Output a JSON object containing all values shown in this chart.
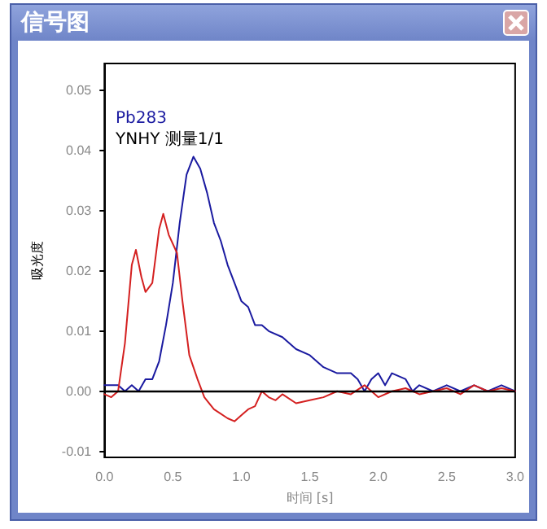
{
  "chart_data": {
    "type": "line",
    "title": "信号图",
    "xlabel": "时间 [s]",
    "ylabel": "吸光度",
    "annotations": [
      "YNHY 测量1/1"
    ],
    "xlim": [
      0,
      3
    ],
    "ylim": [
      -0.011,
      0.0545
    ],
    "xticks": [
      {
        "value": 0,
        "label": "0.0"
      },
      {
        "value": 0.5,
        "label": "0.5"
      },
      {
        "value": 1,
        "label": "1.0"
      },
      {
        "value": 1.5,
        "label": "1.5"
      },
      {
        "value": 2,
        "label": "2.0"
      },
      {
        "value": 2.5,
        "label": "2.5"
      },
      {
        "value": 3,
        "label": "3.0"
      }
    ],
    "yticks": [
      {
        "value": -0.01,
        "label": "-0.01"
      },
      {
        "value": 0,
        "label": "0.00"
      },
      {
        "value": 0.01,
        "label": "0.01"
      },
      {
        "value": 0.02,
        "label": "0.02"
      },
      {
        "value": 0.03,
        "label": "0.03"
      },
      {
        "value": 0.04,
        "label": "0.04"
      },
      {
        "value": 0.05,
        "label": "0.05"
      }
    ],
    "ref_lines": [
      {
        "axis": "y",
        "value": 0,
        "color": "#000000"
      }
    ],
    "grid": false,
    "legend": "top left",
    "marker": "none",
    "line_style": "solid",
    "series": [
      {
        "name": "Pb283",
        "color": "#1a1aa0",
        "x": [
          0,
          0.1,
          0.15,
          0.2,
          0.25,
          0.3,
          0.35,
          0.4,
          0.45,
          0.5,
          0.55,
          0.6,
          0.65,
          0.7,
          0.75,
          0.8,
          0.85,
          0.9,
          0.95,
          1.0,
          1.05,
          1.1,
          1.15,
          1.2,
          1.3,
          1.4,
          1.5,
          1.6,
          1.7,
          1.8,
          1.85,
          1.9,
          1.95,
          2.0,
          2.05,
          2.1,
          2.2,
          2.25,
          2.3,
          2.4,
          2.5,
          2.6,
          2.7,
          2.8,
          2.9,
          3.0
        ],
        "values": [
          0.001,
          0.001,
          0.0,
          0.001,
          0.0,
          0.002,
          0.002,
          0.005,
          0.011,
          0.018,
          0.028,
          0.036,
          0.039,
          0.037,
          0.033,
          0.028,
          0.025,
          0.021,
          0.018,
          0.015,
          0.014,
          0.011,
          0.011,
          0.01,
          0.009,
          0.007,
          0.006,
          0.004,
          0.003,
          0.003,
          0.002,
          0.0,
          0.002,
          0.003,
          0.001,
          0.003,
          0.002,
          0.0,
          0.001,
          0.0,
          0.001,
          0.0,
          0.001,
          0.0,
          0.001,
          0.0
        ]
      },
      {
        "color": "#d42020",
        "x": [
          0,
          0.05,
          0.1,
          0.15,
          0.2,
          0.23,
          0.27,
          0.3,
          0.35,
          0.4,
          0.43,
          0.47,
          0.53,
          0.57,
          0.62,
          0.68,
          0.73,
          0.8,
          0.9,
          0.95,
          1.0,
          1.05,
          1.1,
          1.15,
          1.2,
          1.25,
          1.3,
          1.4,
          1.5,
          1.6,
          1.7,
          1.8,
          1.9,
          2.0,
          2.1,
          2.2,
          2.3,
          2.4,
          2.5,
          2.6,
          2.7,
          2.8,
          2.9,
          3.0
        ],
        "values": [
          -0.0005,
          -0.001,
          0.0,
          0.008,
          0.021,
          0.0235,
          0.019,
          0.0165,
          0.018,
          0.027,
          0.0295,
          0.026,
          0.023,
          0.015,
          0.006,
          0.002,
          -0.001,
          -0.003,
          -0.0045,
          -0.005,
          -0.004,
          -0.003,
          -0.0025,
          0.0,
          -0.001,
          -0.0015,
          -0.0005,
          -0.002,
          -0.0015,
          -0.001,
          0.0,
          -0.0005,
          0.001,
          -0.001,
          0.0,
          0.0005,
          -0.0005,
          0.0,
          0.0005,
          -0.0005,
          0.001,
          0.0,
          0.0005,
          0.0
        ]
      }
    ]
  }
}
